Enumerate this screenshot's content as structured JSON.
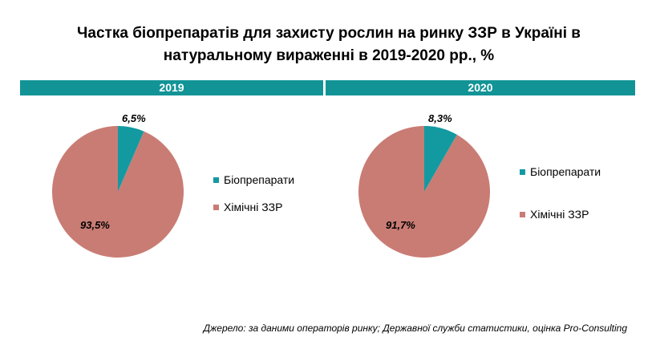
{
  "title": "Частка біопрепаратів для захисту рослин на ринку ЗЗР в Україні в натуральному вираженні в 2019-2020 рр., %",
  "source": "Джерело: за даними операторів ринку; Державної служби статистики, оцінка Pro-Consulting",
  "colors": {
    "band": "#129497",
    "bio": "#139AA1",
    "chem": "#C97C74"
  },
  "chart_data": [
    {
      "type": "pie",
      "title": "2019",
      "categories": [
        "Біопрепарати",
        "Хімічні ЗЗР"
      ],
      "values": [
        6.5,
        93.5
      ],
      "labels": [
        "6,5%",
        "93,5%"
      ],
      "legend": "right"
    },
    {
      "type": "pie",
      "title": "2020",
      "categories": [
        "Біопрепарати",
        "Хімічні ЗЗР"
      ],
      "values": [
        8.3,
        91.7
      ],
      "labels": [
        "8,3%",
        "91,7%"
      ],
      "legend": "right"
    }
  ]
}
